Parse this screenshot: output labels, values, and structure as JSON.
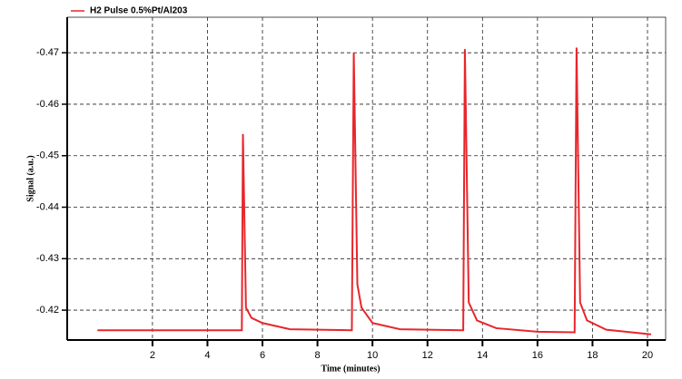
{
  "chart_data": {
    "type": "line",
    "xlabel": "Time (minutes)",
    "ylabel": "Signal (a.u.)",
    "xlim": [
      -1.1,
      20.66
    ],
    "ylim": [
      -0.4142,
      -0.4769
    ],
    "xticks": [
      2,
      4,
      6,
      8,
      10,
      12,
      14,
      16,
      18,
      20
    ],
    "yticks": [
      -0.42,
      -0.43,
      -0.44,
      -0.45,
      -0.46,
      -0.47
    ],
    "grid": true,
    "legend": "top-left",
    "series": [
      {
        "name": "H2 Pulse 0.5%Pt/Al203",
        "color": "#e8262b",
        "x": [
          0,
          5.25,
          5.29,
          5.4,
          5.6,
          6,
          7,
          9.25,
          9.32,
          9.45,
          9.6,
          10,
          11,
          13.3,
          13.36,
          13.5,
          13.8,
          14.5,
          16,
          17.35,
          17.42,
          17.55,
          17.8,
          18.5,
          20.13
        ],
        "values": [
          -0.4161,
          -0.4161,
          -0.4542,
          -0.4205,
          -0.4185,
          -0.4175,
          -0.4163,
          -0.4161,
          -0.47,
          -0.425,
          -0.4205,
          -0.4175,
          -0.4163,
          -0.4161,
          -0.4707,
          -0.4215,
          -0.418,
          -0.4165,
          -0.4158,
          -0.4157,
          -0.471,
          -0.4215,
          -0.418,
          -0.4162,
          -0.4153
        ]
      }
    ]
  }
}
